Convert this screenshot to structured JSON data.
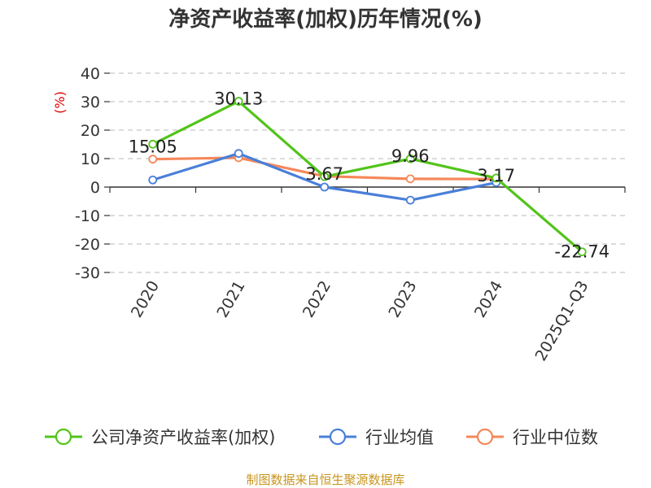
{
  "chart_data": {
    "type": "line",
    "title": "净资产收益率(加权)历年情况(%)",
    "ylabel": "(%)",
    "categories": [
      "2020",
      "2021",
      "2022",
      "2023",
      "2024",
      "2025Q1-Q3"
    ],
    "ylim": [
      -30,
      40
    ],
    "yticks": [
      40,
      30,
      20,
      10,
      0,
      -10,
      -20,
      -30
    ],
    "series": [
      {
        "name": "公司净资产收益率(加权)",
        "color": "#52c41a",
        "values": [
          15.05,
          30.13,
          3.67,
          9.96,
          3.17,
          -22.74
        ],
        "labels": [
          "15.05",
          "30.13",
          "3.67",
          "9.96",
          "3.17",
          "-22.74"
        ]
      },
      {
        "name": "行业均值",
        "color": "#4a7fd9",
        "values": [
          2.5,
          11.8,
          0.0,
          -4.6,
          1.6,
          null
        ]
      },
      {
        "name": "行业中位数",
        "color": "#f5885a",
        "values": [
          9.8,
          10.3,
          3.8,
          2.9,
          2.8,
          null
        ]
      }
    ],
    "grid": true,
    "legend_position": "bottom",
    "source": "制图数据来自恒生聚源数据库",
    "unit_color": "#e00000",
    "source_color": "#c8951e"
  }
}
